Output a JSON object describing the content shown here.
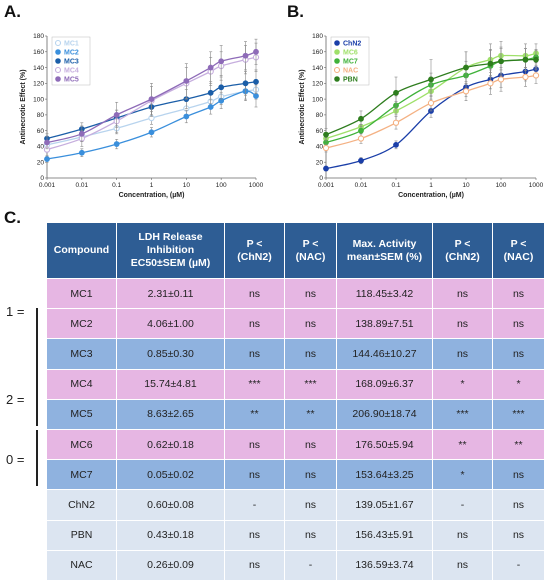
{
  "panels": {
    "a": "A.",
    "b": "B.",
    "c": "C."
  },
  "chart_data": [
    {
      "type": "scatter",
      "panel": "A",
      "title": "",
      "xlabel": "Concentration, (µM)",
      "ylabel": "Antinecrotic Effect (%)",
      "x_scale": "log",
      "xlim": [
        0.001,
        1000
      ],
      "ylim": [
        0,
        180
      ],
      "x_ticks": [
        "0.001",
        "0.01",
        "0.1",
        "1",
        "10",
        "100",
        "1000"
      ],
      "y_ticks": [
        "0",
        "20",
        "40",
        "60",
        "80",
        "100",
        "120",
        "140",
        "160",
        "180"
      ],
      "legend_position": "top-left",
      "x": [
        0.001,
        0.01,
        0.1,
        1,
        10,
        50,
        100,
        500,
        1000
      ],
      "series": [
        {
          "name": "MC1",
          "color": "#b8d4ee",
          "marker": "open-circle",
          "values": [
            42,
            52,
            63,
            76,
            88,
            97,
            103,
            110,
            112
          ],
          "errors": [
            5,
            6,
            7,
            8,
            9,
            9,
            10,
            10,
            12
          ]
        },
        {
          "name": "MC2",
          "color": "#3a8fdc",
          "marker": "filled-circle",
          "values": [
            24,
            32,
            43,
            58,
            78,
            90,
            98,
            110,
            104
          ],
          "errors": [
            4,
            5,
            6,
            6,
            8,
            9,
            10,
            12,
            14
          ]
        },
        {
          "name": "MC3",
          "color": "#1b5ea8",
          "marker": "filled-circle",
          "values": [
            50,
            62,
            76,
            90,
            100,
            108,
            115,
            120,
            122
          ],
          "errors": [
            6,
            8,
            10,
            12,
            12,
            14,
            15,
            15,
            15
          ]
        },
        {
          "name": "MC4",
          "color": "#c6aede",
          "marker": "open-circle",
          "values": [
            36,
            50,
            72,
            98,
            120,
            135,
            142,
            150,
            153
          ],
          "errors": [
            8,
            10,
            14,
            18,
            20,
            18,
            18,
            18,
            18
          ]
        },
        {
          "name": "MC5",
          "color": "#8e6bb8",
          "marker": "filled-circle",
          "values": [
            45,
            56,
            80,
            100,
            123,
            140,
            148,
            155,
            160
          ],
          "errors": [
            8,
            10,
            16,
            20,
            22,
            20,
            20,
            18,
            16
          ]
        }
      ]
    },
    {
      "type": "scatter",
      "panel": "B",
      "title": "",
      "xlabel": "Concentration, (µM)",
      "ylabel": "Antinecrotic Effect (%)",
      "x_scale": "log",
      "xlim": [
        0.001,
        1000
      ],
      "ylim": [
        0,
        180
      ],
      "x_ticks": [
        "0.001",
        "0.01",
        "0.1",
        "1",
        "10",
        "100",
        "1000"
      ],
      "y_ticks": [
        "0",
        "20",
        "40",
        "60",
        "80",
        "100",
        "120",
        "140",
        "160",
        "180"
      ],
      "legend_position": "top-left",
      "x": [
        0.001,
        0.01,
        0.1,
        1,
        10,
        50,
        100,
        500,
        1000
      ],
      "series": [
        {
          "name": "ChN2",
          "color": "#1a3ea8",
          "marker": "filled-circle",
          "values": [
            12,
            22,
            42,
            85,
            115,
            125,
            130,
            135,
            138
          ],
          "errors": [
            3,
            4,
            5,
            8,
            12,
            12,
            15,
            12,
            10
          ]
        },
        {
          "name": "MC6",
          "color": "#9fe06a",
          "marker": "filled-circle",
          "values": [
            50,
            65,
            85,
            110,
            140,
            150,
            155,
            155,
            158
          ],
          "errors": [
            6,
            8,
            12,
            18,
            20,
            20,
            18,
            15,
            12
          ]
        },
        {
          "name": "MC7",
          "color": "#3fb23a",
          "marker": "filled-circle",
          "values": [
            45,
            60,
            92,
            118,
            130,
            142,
            148,
            150,
            153
          ],
          "errors": [
            6,
            8,
            12,
            15,
            18,
            20,
            18,
            14,
            10
          ]
        },
        {
          "name": "NAC",
          "color": "#f4b183",
          "marker": "open-circle",
          "values": [
            38,
            50,
            70,
            95,
            110,
            120,
            125,
            128,
            130
          ],
          "errors": [
            5,
            6,
            8,
            10,
            12,
            14,
            15,
            12,
            10
          ]
        },
        {
          "name": "PBN",
          "color": "#2e7d1e",
          "marker": "filled-circle",
          "values": [
            55,
            75,
            108,
            125,
            140,
            145,
            148,
            150,
            150
          ],
          "errors": [
            8,
            10,
            20,
            25,
            20,
            18,
            16,
            14,
            12
          ]
        }
      ]
    }
  ],
  "table": {
    "headers": [
      "Compound",
      "LDH Release Inhibition EC50±SEM (µM)",
      "P < (ChN2)",
      "P < (NAC)",
      "Max. Activity mean±SEM (%)",
      "P < (ChN2)",
      "P < (NAC)"
    ],
    "rows": [
      {
        "cells": [
          "MC1",
          "2.31±0.11",
          "ns",
          "ns",
          "118.45±3.42",
          "ns",
          "ns"
        ],
        "color": "pink"
      },
      {
        "cells": [
          "MC2",
          "4.06±1.00",
          "ns",
          "ns",
          "138.89±7.51",
          "ns",
          "ns"
        ],
        "color": "pink"
      },
      {
        "cells": [
          "MC3",
          "0.85±0.30",
          "ns",
          "ns",
          "144.46±10.27",
          "ns",
          "ns"
        ],
        "color": "blue"
      },
      {
        "cells": [
          "MC4",
          "15.74±4.81",
          "***",
          "***",
          "168.09±6.37",
          "*",
          "*"
        ],
        "color": "pink"
      },
      {
        "cells": [
          "MC5",
          "8.63±2.65",
          "**",
          "**",
          "206.90±18.74",
          "***",
          "***"
        ],
        "color": "blue"
      },
      {
        "cells": [
          "MC6",
          "0.62±0.18",
          "ns",
          "ns",
          "176.50±5.94",
          "**",
          "**"
        ],
        "color": "pink"
      },
      {
        "cells": [
          "MC7",
          "0.05±0.02",
          "ns",
          "ns",
          "153.64±3.25",
          "*",
          "ns"
        ],
        "color": "blue"
      },
      {
        "cells": [
          "ChN2",
          "0.60±0.08",
          "-",
          "ns",
          "139.05±1.67",
          "-",
          "ns"
        ],
        "color": "lightblue"
      },
      {
        "cells": [
          "PBN",
          "0.43±0.18",
          "ns",
          "ns",
          "156.43±5.91",
          "ns",
          "ns"
        ],
        "color": "lightblue"
      },
      {
        "cells": [
          "NAC",
          "0.26±0.09",
          "ns",
          "-",
          "136.59±3.74",
          "ns",
          "-"
        ],
        "color": "lightblue"
      }
    ],
    "group_labels": [
      "1 =",
      "2 =",
      "0 ="
    ]
  }
}
